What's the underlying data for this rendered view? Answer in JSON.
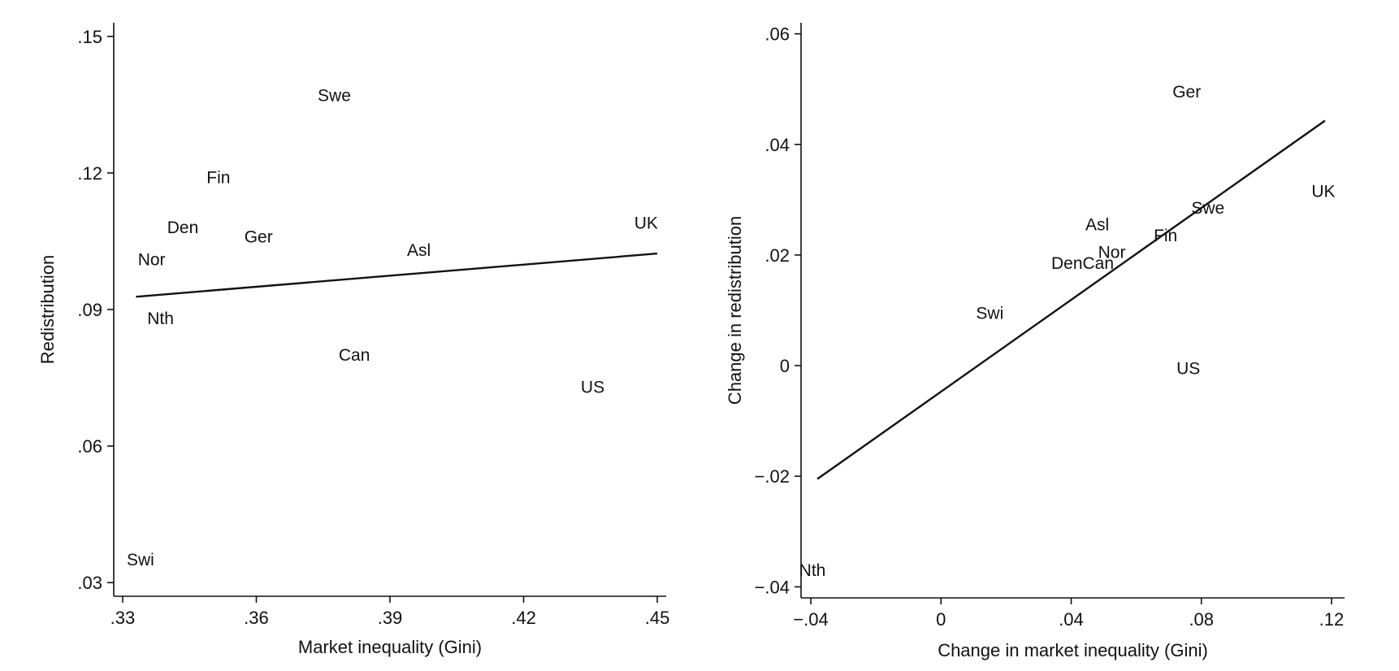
{
  "chart_data": [
    {
      "type": "scatter",
      "xlabel": "Market inequality (Gini)",
      "ylabel": "Redistribution",
      "xlim": [
        0.328,
        0.452
      ],
      "ylim": [
        0.027,
        0.153
      ],
      "x_ticks": [
        {
          "value": 0.33,
          "label": ".33"
        },
        {
          "value": 0.36,
          "label": ".36"
        },
        {
          "value": 0.39,
          "label": ".39"
        },
        {
          "value": 0.42,
          "label": ".42"
        },
        {
          "value": 0.45,
          "label": ".45"
        }
      ],
      "y_ticks": [
        {
          "value": 0.03,
          "label": ".03"
        },
        {
          "value": 0.06,
          "label": ".06"
        },
        {
          "value": 0.09,
          "label": ".09"
        },
        {
          "value": 0.12,
          "label": ".12"
        },
        {
          "value": 0.15,
          "label": ".15"
        }
      ],
      "points": [
        {
          "label": "Swe",
          "x": 0.3775,
          "y": 0.137
        },
        {
          "label": "Fin",
          "x": 0.3515,
          "y": 0.119
        },
        {
          "label": "Den",
          "x": 0.3435,
          "y": 0.108
        },
        {
          "label": "Ger",
          "x": 0.3605,
          "y": 0.106
        },
        {
          "label": "Nor",
          "x": 0.3365,
          "y": 0.101
        },
        {
          "label": "Asl",
          "x": 0.3965,
          "y": 0.103
        },
        {
          "label": "UK",
          "x": 0.4475,
          "y": 0.109
        },
        {
          "label": "Nth",
          "x": 0.3385,
          "y": 0.088
        },
        {
          "label": "Can",
          "x": 0.382,
          "y": 0.08
        },
        {
          "label": "US",
          "x": 0.4355,
          "y": 0.073
        },
        {
          "label": "Swi",
          "x": 0.334,
          "y": 0.035
        }
      ],
      "fit_line": {
        "x": [
          0.333,
          0.45
        ],
        "y": [
          0.0928,
          0.1023
        ]
      },
      "grid": false,
      "legend": "none"
    },
    {
      "type": "scatter",
      "xlabel": "Change in market inequality (Gini)",
      "ylabel": "Change in redistribution",
      "xlim": [
        -0.043,
        0.124
      ],
      "ylim": [
        -0.042,
        0.062
      ],
      "x_ticks": [
        {
          "value": -0.04,
          "label": "−.04"
        },
        {
          "value": 0,
          "label": "0"
        },
        {
          "value": 0.04,
          "label": ".04"
        },
        {
          "value": 0.08,
          "label": ".08"
        },
        {
          "value": 0.12,
          "label": ".12"
        }
      ],
      "y_ticks": [
        {
          "value": -0.04,
          "label": "−.04"
        },
        {
          "value": -0.02,
          "label": "−.02"
        },
        {
          "value": 0,
          "label": "0"
        },
        {
          "value": 0.02,
          "label": ".02"
        },
        {
          "value": 0.04,
          "label": ".04"
        },
        {
          "value": 0.06,
          "label": ".06"
        }
      ],
      "points": [
        {
          "label": "Ger",
          "x": 0.0755,
          "y": 0.0495
        },
        {
          "label": "UK",
          "x": 0.1175,
          "y": 0.0315
        },
        {
          "label": "Swe",
          "x": 0.082,
          "y": 0.0285
        },
        {
          "label": "Asl",
          "x": 0.048,
          "y": 0.0255
        },
        {
          "label": "Fin",
          "x": 0.069,
          "y": 0.0235
        },
        {
          "label": "Nor",
          "x": 0.0525,
          "y": 0.0205
        },
        {
          "label": "DenCan",
          "x": 0.0435,
          "y": 0.0185
        },
        {
          "label": "Swi",
          "x": 0.015,
          "y": 0.0095
        },
        {
          "label": "US",
          "x": 0.076,
          "y": -0.0005
        },
        {
          "label": "Nth",
          "x": -0.0395,
          "y": -0.037
        }
      ],
      "fit_line": {
        "x": [
          -0.038,
          0.118
        ],
        "y": [
          -0.0205,
          0.0443
        ]
      },
      "grid": false,
      "legend": "none"
    }
  ]
}
